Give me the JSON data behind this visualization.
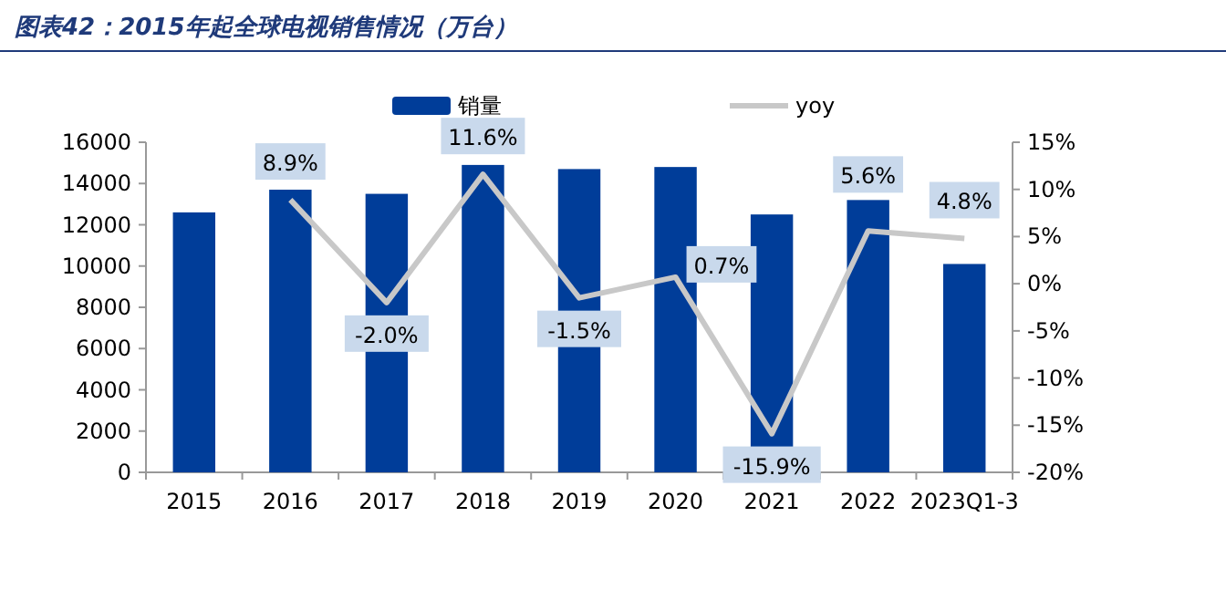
{
  "chart_data": {
    "type": "bar",
    "title": "图表42：2015年起全球电视销售情况（万台）",
    "categories": [
      "2015",
      "2016",
      "2017",
      "2018",
      "2019",
      "2020",
      "2021",
      "2022",
      "2023Q1-3"
    ],
    "series": [
      {
        "name": "销量",
        "color": "#003d99",
        "values": [
          12600,
          13700,
          13500,
          14900,
          14700,
          14800,
          12500,
          13200,
          10100
        ]
      },
      {
        "name": "yoy",
        "type": "line",
        "axis": "y2",
        "color": "#c8c8c8",
        "values": [
          null,
          8.9,
          -2.0,
          11.6,
          -1.5,
          0.7,
          -15.9,
          5.6,
          4.8
        ],
        "value_labels": [
          null,
          "8.9%",
          "-2.0%",
          "11.6%",
          "-1.5%",
          "0.7%",
          "-15.9%",
          "5.6%",
          "4.8%"
        ]
      }
    ],
    "ylim": [
      0,
      16000
    ],
    "yticks": [
      0,
      2000,
      4000,
      6000,
      8000,
      10000,
      12000,
      14000,
      16000
    ],
    "y2lim": [
      -20,
      15
    ],
    "y2ticks": [
      {
        "value": -20,
        "label": "-20%"
      },
      {
        "value": -15,
        "label": "-15%"
      },
      {
        "value": -10,
        "label": "-10%"
      },
      {
        "value": -5,
        "label": "-5%"
      },
      {
        "value": 0,
        "label": "0%"
      },
      {
        "value": 5,
        "label": "5%"
      },
      {
        "value": 10,
        "label": "10%"
      },
      {
        "value": 15,
        "label": "15%"
      }
    ],
    "legend": "top",
    "grid": false
  }
}
